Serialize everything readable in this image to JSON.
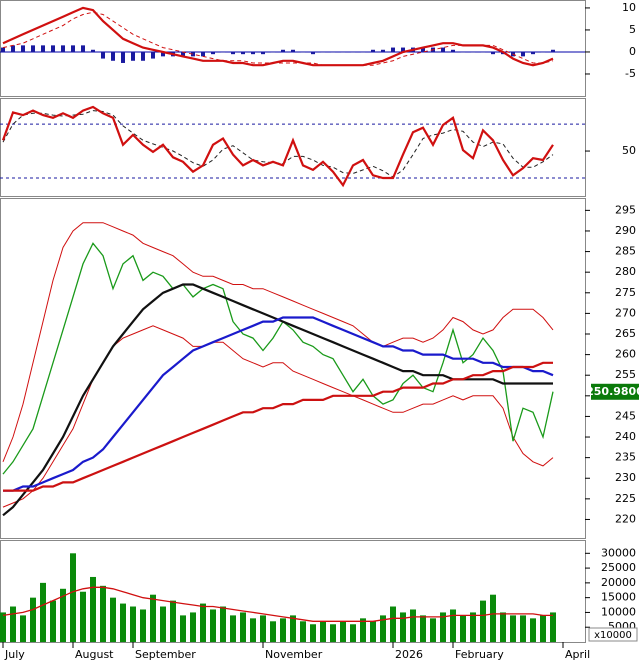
{
  "chart_data": [
    {
      "type": "line",
      "ylim": [
        -10,
        11.8
      ],
      "yticks": [
        10,
        5,
        0,
        -5
      ],
      "hlines": [
        0
      ],
      "hline_color": "#0000aa",
      "series": [
        {
          "style": "bar",
          "color": "#1a1aa0",
          "values": [
            1,
            1.5,
            1.5,
            1.5,
            1.5,
            1.5,
            1.5,
            1.5,
            1.5,
            0.5,
            -1.5,
            -2,
            -2.5,
            -2,
            -2,
            -1.5,
            -1,
            -1,
            -1,
            -1,
            -1,
            -0.5,
            0,
            -0.5,
            -0.5,
            -0.5,
            -0.5,
            0,
            0.5,
            0.5,
            0,
            -0.5,
            0,
            0,
            0,
            0,
            0,
            0.5,
            0.5,
            1,
            1,
            1,
            1,
            1,
            1,
            0.5,
            0,
            0,
            0,
            -0.5,
            -0.5,
            -1,
            -1,
            -0.5,
            0,
            0.5,
            null
          ]
        },
        {
          "style": "dashed",
          "color": "#d01010",
          "values": [
            1,
            1.5,
            2,
            3,
            4,
            5,
            6,
            7.5,
            8.5,
            9,
            8.5,
            7,
            5.5,
            4,
            3,
            2,
            1,
            0.5,
            0,
            -0.5,
            -1,
            -1.5,
            -2,
            -2,
            -2,
            -2.5,
            -2.5,
            -2.5,
            -2.5,
            -2.5,
            -2.5,
            -2.5,
            -3,
            -3,
            -3,
            -3,
            -3,
            -3,
            -2.5,
            -2,
            -1,
            -0.5,
            0,
            0.5,
            1,
            1.5,
            1.5,
            1.5,
            1.5,
            1.5,
            0.5,
            -0.5,
            -1.5,
            -2.5,
            -2.5,
            -2,
            null
          ]
        },
        {
          "style": "thick",
          "color": "#d01010",
          "values": [
            2,
            3,
            4,
            5,
            6,
            7,
            8,
            9,
            10,
            9.5,
            7,
            5,
            3,
            2,
            1,
            0.5,
            0,
            -0.5,
            -1,
            -1.5,
            -2,
            -2,
            -2,
            -2.5,
            -2.5,
            -3,
            -3,
            -2.5,
            -2,
            -2,
            -2.5,
            -3,
            -3,
            -3,
            -3,
            -3,
            -3,
            -2.5,
            -2,
            -1,
            0,
            0.5,
            1,
            1.5,
            2,
            2,
            1.5,
            1.5,
            1.5,
            1,
            0,
            -1.5,
            -2.5,
            -3,
            -2.5,
            -1.5,
            null
          ]
        }
      ]
    },
    {
      "type": "line",
      "ylim": [
        0,
        109
      ],
      "yticks": [
        50
      ],
      "hlines": [
        80,
        20
      ],
      "hline_color": "#1a1aa0",
      "series": [
        {
          "style": "dashed",
          "color": "#222222",
          "values": [
            60,
            80,
            90,
            92,
            92,
            90,
            89,
            90,
            91,
            95,
            94,
            90,
            78,
            70,
            62,
            58,
            54,
            50,
            44,
            37,
            33,
            40,
            52,
            56,
            48,
            40,
            38,
            37,
            36,
            44,
            44,
            40,
            34,
            32,
            26,
            25,
            29,
            33,
            28,
            21,
            29,
            46,
            64,
            68,
            70,
            74,
            72,
            60,
            55,
            60,
            58,
            42,
            32,
            32,
            38,
            46,
            null
          ]
        },
        {
          "style": "thick",
          "color": "#d01010",
          "values": [
            62,
            93,
            90,
            95,
            90,
            87,
            92,
            87,
            95,
            99,
            92,
            87,
            57,
            68,
            57,
            49,
            57,
            43,
            38,
            27,
            34,
            57,
            64,
            46,
            34,
            40,
            34,
            38,
            34,
            62,
            34,
            29,
            38,
            27,
            12,
            34,
            40,
            23,
            20,
            20,
            46,
            71,
            76,
            57,
            79,
            87,
            51,
            42,
            73,
            62,
            40,
            23,
            31,
            42,
            40,
            57,
            null
          ]
        }
      ]
    },
    {
      "type": "line",
      "ylim": [
        215.5,
        298
      ],
      "yticks": [
        220,
        225,
        230,
        235,
        240,
        245,
        250,
        255,
        260,
        265,
        270,
        275,
        280,
        285,
        290,
        295
      ],
      "last_value": 250.98,
      "last_value_label": "250.9800",
      "last_value_color": "#0a7a0a",
      "series": [
        {
          "style": "thin",
          "color": "#d01010",
          "values": [
            234,
            240,
            248,
            258,
            268,
            278,
            286,
            290,
            292,
            292,
            292,
            291,
            290,
            289,
            287,
            286,
            285,
            284,
            282,
            280,
            279,
            279,
            278,
            277,
            277,
            276,
            276,
            275,
            274,
            273,
            272,
            271,
            270,
            269,
            268,
            267,
            265,
            263,
            262,
            263,
            264,
            264,
            263,
            264,
            266,
            269,
            268,
            266,
            265,
            266,
            269,
            271,
            271,
            271,
            269,
            266,
            null
          ]
        },
        {
          "style": "thin",
          "color": "#d01010",
          "values": [
            223,
            224,
            225,
            227,
            230,
            234,
            238,
            242,
            248,
            254,
            258,
            262,
            264,
            265,
            266,
            267,
            266,
            265,
            264,
            262,
            262,
            263,
            263,
            261,
            259,
            258,
            257,
            258,
            258,
            256,
            255,
            254,
            253,
            252,
            251,
            250,
            249,
            248,
            247,
            246,
            246,
            247,
            248,
            248,
            249,
            250,
            249,
            250,
            250,
            250,
            247,
            240,
            236,
            234,
            233,
            235,
            null
          ]
        },
        {
          "style": "line",
          "color": "#1a9a1a",
          "values": [
            231,
            234,
            238,
            242,
            250,
            258,
            266,
            274,
            282,
            287,
            284,
            276,
            282,
            284,
            278,
            280,
            279,
            276,
            277,
            274,
            276,
            277,
            276,
            268,
            265,
            264,
            261,
            264,
            268,
            266,
            263,
            262,
            260,
            259,
            255,
            251,
            254,
            250,
            248,
            249,
            253,
            255,
            252,
            251,
            258,
            266,
            258,
            260,
            264,
            261,
            256,
            239,
            247,
            246,
            240,
            251,
            null
          ]
        },
        {
          "style": "thick",
          "color": "#111111",
          "values": [
            221,
            223,
            226,
            229,
            232,
            236,
            240,
            245,
            250,
            254,
            258,
            262,
            265,
            268,
            271,
            273,
            275,
            276,
            277,
            277,
            276,
            275,
            274,
            273,
            272,
            271,
            270,
            269,
            268,
            267,
            266,
            265,
            264,
            263,
            262,
            261,
            260,
            259,
            258,
            257,
            256,
            256,
            255,
            255,
            255,
            254,
            254,
            254,
            254,
            254,
            253,
            253,
            253,
            253,
            253,
            253,
            null
          ]
        },
        {
          "style": "thick",
          "color": "#1a1acc",
          "values": [
            227,
            227,
            228,
            228,
            229,
            230,
            231,
            232,
            234,
            235,
            237,
            240,
            243,
            246,
            249,
            252,
            255,
            257,
            259,
            261,
            262,
            263,
            264,
            265,
            266,
            267,
            268,
            268,
            269,
            269,
            269,
            269,
            268,
            267,
            266,
            265,
            264,
            263,
            262,
            262,
            261,
            261,
            260,
            260,
            260,
            259,
            259,
            259,
            258,
            258,
            257,
            257,
            257,
            256,
            256,
            255,
            null
          ]
        },
        {
          "style": "thick",
          "color": "#cc1111",
          "values": [
            227,
            227,
            227,
            227,
            228,
            228,
            229,
            229,
            230,
            231,
            232,
            233,
            234,
            235,
            236,
            237,
            238,
            239,
            240,
            241,
            242,
            243,
            244,
            245,
            246,
            246,
            247,
            247,
            248,
            248,
            249,
            249,
            249,
            250,
            250,
            250,
            250,
            250,
            251,
            251,
            252,
            252,
            252,
            253,
            253,
            254,
            254,
            255,
            255,
            256,
            256,
            257,
            257,
            257,
            258,
            258,
            null
          ]
        }
      ]
    },
    {
      "type": "bar",
      "ylim": [
        0,
        34500
      ],
      "yticks": [
        5000,
        10000,
        15000,
        20000,
        25000,
        30000
      ],
      "unit_label": "x10000",
      "categories": [
        "July",
        null,
        null,
        null,
        null,
        null,
        null,
        "August",
        null,
        null,
        null,
        null,
        null,
        "September",
        null,
        null,
        null,
        null,
        null,
        null,
        null,
        null,
        null,
        null,
        null,
        null,
        "November",
        null,
        null,
        null,
        null,
        null,
        null,
        null,
        null,
        null,
        null,
        null,
        null,
        "2026",
        null,
        null,
        null,
        null,
        null,
        "February",
        null,
        null,
        null,
        null,
        null,
        null,
        null,
        null,
        null,
        null,
        "April"
      ],
      "series": [
        {
          "style": "bar",
          "color": "#0a8a0a",
          "values": [
            10000,
            12000,
            9000,
            15000,
            20000,
            14000,
            18000,
            30000,
            17000,
            22000,
            19000,
            15000,
            13000,
            12000,
            11000,
            16000,
            12000,
            14000,
            9000,
            10000,
            13000,
            11000,
            12000,
            9000,
            10000,
            8000,
            9000,
            7000,
            8000,
            9000,
            7000,
            6000,
            7000,
            6000,
            7000,
            6000,
            8000,
            7000,
            9000,
            12000,
            10000,
            11000,
            9000,
            8000,
            10000,
            11000,
            9000,
            10000,
            14000,
            16000,
            10000,
            9000,
            9000,
            8000,
            9000,
            10000,
            null
          ]
        },
        {
          "style": "line",
          "color": "#d01010",
          "values": [
            9000,
            9500,
            10000,
            11000,
            12500,
            14000,
            15500,
            17000,
            18000,
            18500,
            18500,
            18000,
            17000,
            16000,
            15000,
            14500,
            14000,
            13500,
            13000,
            12500,
            12000,
            12000,
            11500,
            11000,
            10500,
            10000,
            9500,
            9000,
            8500,
            8000,
            7500,
            7000,
            7000,
            7000,
            7000,
            7000,
            7000,
            7000,
            7500,
            8000,
            8000,
            8500,
            8500,
            8500,
            8500,
            9000,
            9000,
            9000,
            9000,
            9500,
            9500,
            9500,
            9500,
            9500,
            9000,
            9000,
            null
          ]
        }
      ]
    }
  ]
}
